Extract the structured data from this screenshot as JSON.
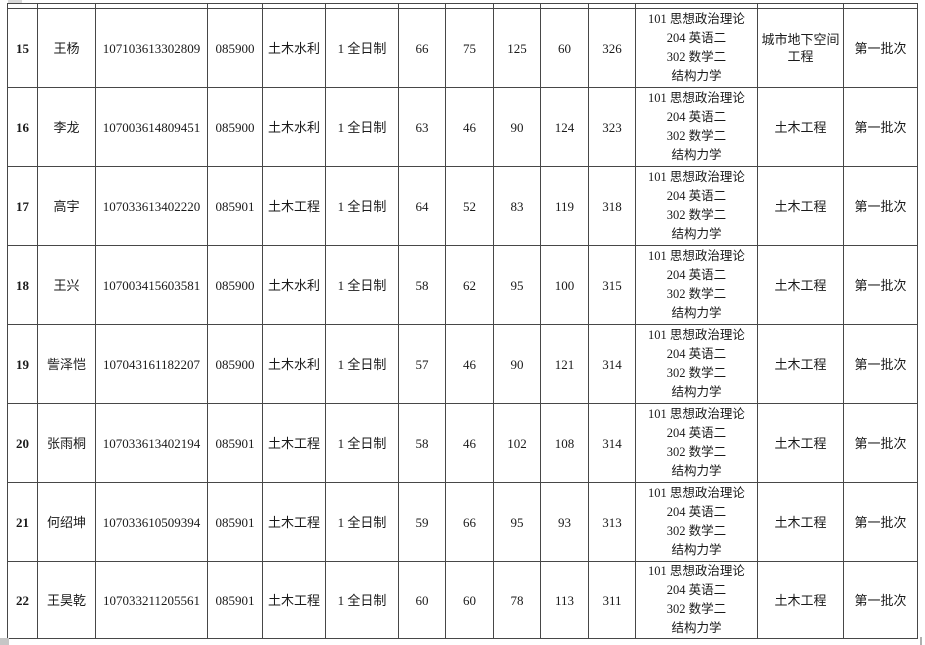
{
  "page": {
    "background_color": "#ffffff",
    "text_color": "#1a1a1a",
    "border_color": "#474747"
  },
  "table": {
    "rows": [
      {
        "num": "15",
        "name": "王杨",
        "id": "107103613302809",
        "code": "085900",
        "major": "土木水利",
        "study": "1 全日制",
        "s1": "66",
        "s2": "75",
        "s3": "125",
        "s4": "60",
        "total": "326",
        "subjects": [
          "101 思想政治理论",
          "204 英语二",
          "302 数学二",
          "结构力学"
        ],
        "program": "城市地下空间工程",
        "batch": "第一批次"
      },
      {
        "num": "16",
        "name": "李龙",
        "id": "107003614809451",
        "code": "085900",
        "major": "土木水利",
        "study": "1 全日制",
        "s1": "63",
        "s2": "46",
        "s3": "90",
        "s4": "124",
        "total": "323",
        "subjects": [
          "101 思想政治理论",
          "204 英语二",
          "302 数学二",
          "结构力学"
        ],
        "program": "土木工程",
        "batch": "第一批次"
      },
      {
        "num": "17",
        "name": "高宇",
        "id": "107033613402220",
        "code": "085901",
        "major": "土木工程",
        "study": "1 全日制",
        "s1": "64",
        "s2": "52",
        "s3": "83",
        "s4": "119",
        "total": "318",
        "subjects": [
          "101 思想政治理论",
          "204 英语二",
          "302 数学二",
          "结构力学"
        ],
        "program": "土木工程",
        "batch": "第一批次"
      },
      {
        "num": "18",
        "name": "王兴",
        "id": "107003415603581",
        "code": "085900",
        "major": "土木水利",
        "study": "1 全日制",
        "s1": "58",
        "s2": "62",
        "s3": "95",
        "s4": "100",
        "total": "315",
        "subjects": [
          "101 思想政治理论",
          "204 英语二",
          "302 数学二",
          "结构力学"
        ],
        "program": "土木工程",
        "batch": "第一批次"
      },
      {
        "num": "19",
        "name": "訾泽恺",
        "id": "107043161182207",
        "code": "085900",
        "major": "土木水利",
        "study": "1 全日制",
        "s1": "57",
        "s2": "46",
        "s3": "90",
        "s4": "121",
        "total": "314",
        "subjects": [
          "101 思想政治理论",
          "204 英语二",
          "302 数学二",
          "结构力学"
        ],
        "program": "土木工程",
        "batch": "第一批次"
      },
      {
        "num": "20",
        "name": "张雨桐",
        "id": "107033613402194",
        "code": "085901",
        "major": "土木工程",
        "study": "1 全日制",
        "s1": "58",
        "s2": "46",
        "s3": "102",
        "s4": "108",
        "total": "314",
        "subjects": [
          "101 思想政治理论",
          "204 英语二",
          "302 数学二",
          "结构力学"
        ],
        "program": "土木工程",
        "batch": "第一批次"
      },
      {
        "num": "21",
        "name": "何绍坤",
        "id": "107033610509394",
        "code": "085901",
        "major": "土木工程",
        "study": "1 全日制",
        "s1": "59",
        "s2": "66",
        "s3": "95",
        "s4": "93",
        "total": "313",
        "subjects": [
          "101 思想政治理论",
          "204 英语二",
          "302 数学二",
          "结构力学"
        ],
        "program": "土木工程",
        "batch": "第一批次"
      },
      {
        "num": "22",
        "name": "王昊乾",
        "id": "107033211205561",
        "code": "085901",
        "major": "土木工程",
        "study": "1 全日制",
        "s1": "60",
        "s2": "60",
        "s3": "78",
        "s4": "113",
        "total": "311",
        "subjects": [
          "101 思想政治理论",
          "204 英语二",
          "302 数学二",
          "结构力学"
        ],
        "program": "土木工程",
        "batch": "第一批次"
      }
    ]
  }
}
